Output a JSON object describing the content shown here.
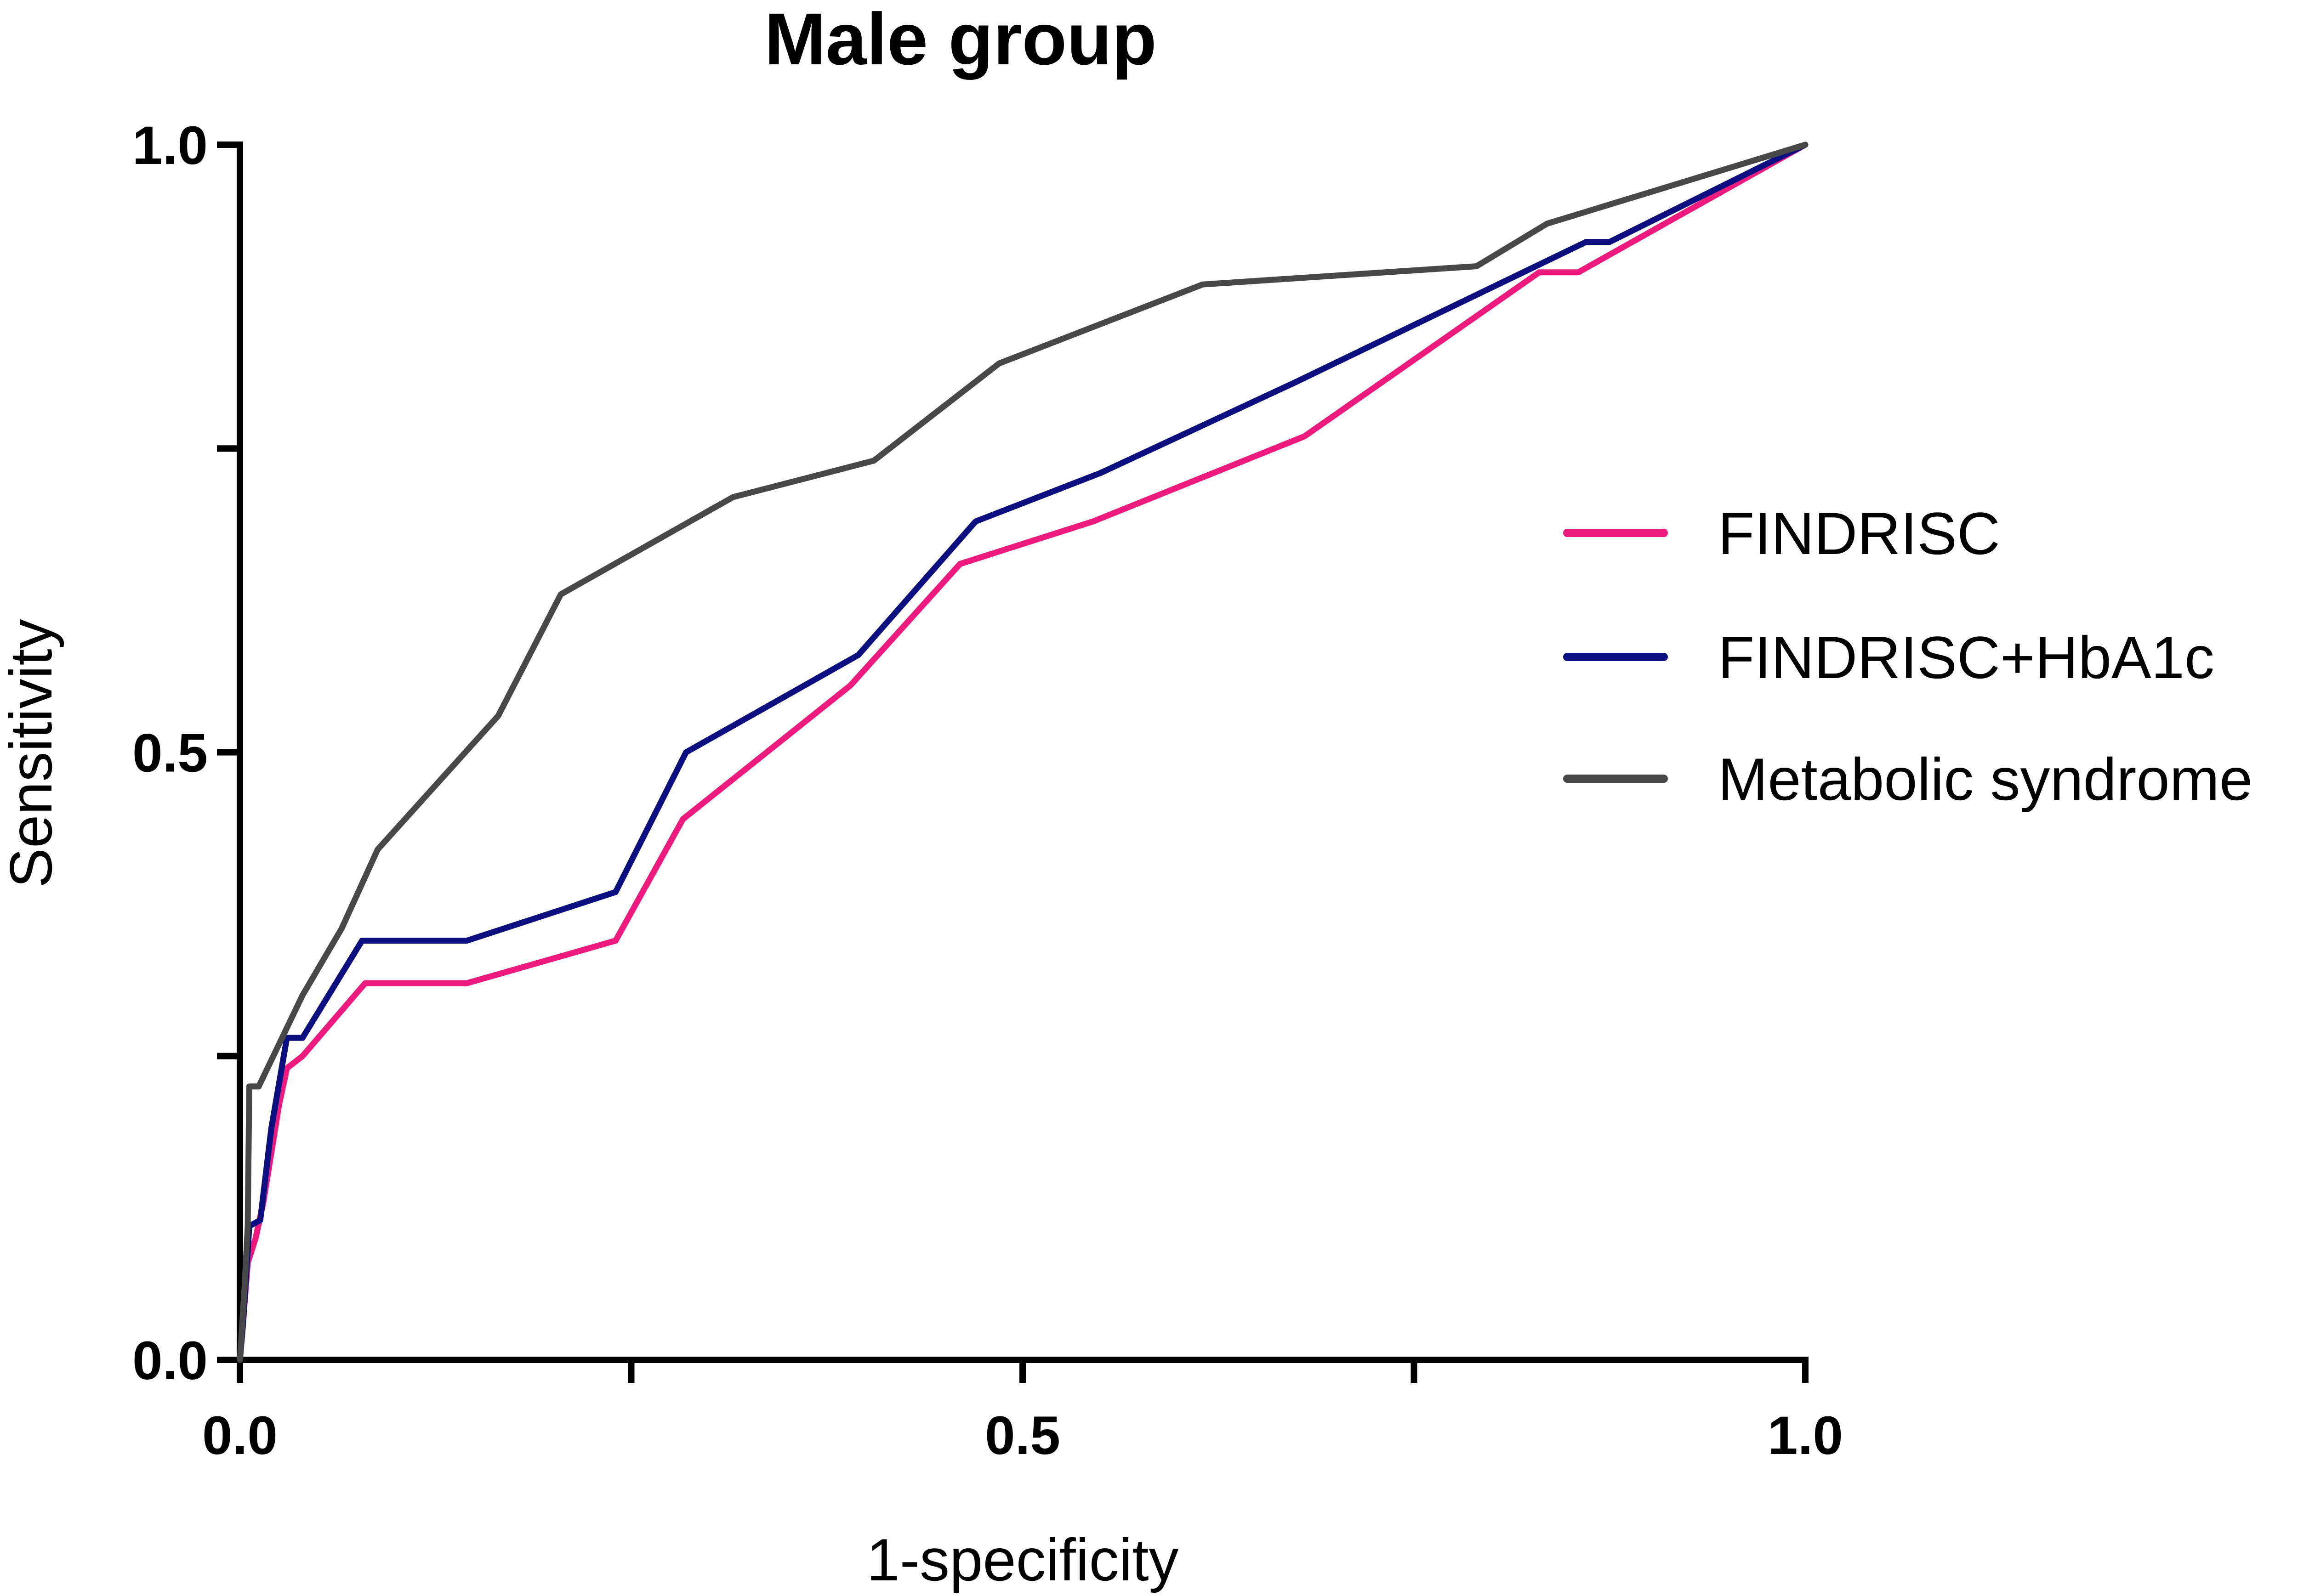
{
  "chart_data": {
    "type": "line",
    "title": "Male group",
    "xlabel": "1-specificity",
    "ylabel": "Sensitivity",
    "xlim": [
      0,
      1
    ],
    "ylim": [
      0,
      1
    ],
    "x_ticks": [
      {
        "value": 0,
        "label": "0.0"
      },
      {
        "value": 0.25,
        "label": ""
      },
      {
        "value": 0.5,
        "label": "0.5"
      },
      {
        "value": 0.75,
        "label": ""
      },
      {
        "value": 1,
        "label": "1.0"
      }
    ],
    "y_ticks": [
      {
        "value": 0,
        "label": "0.0"
      },
      {
        "value": 0.25,
        "label": ""
      },
      {
        "value": 0.5,
        "label": "0.5"
      },
      {
        "value": 0.75,
        "label": ""
      },
      {
        "value": 1,
        "label": "1.0"
      }
    ],
    "grid": false,
    "legend_position": "right",
    "series": [
      {
        "name": "FINDRISC",
        "color": "#ee1a7e",
        "points": [
          [
            0,
            0
          ],
          [
            0.002,
            0.03
          ],
          [
            0.005,
            0.08
          ],
          [
            0.01,
            0.1
          ],
          [
            0.015,
            0.13
          ],
          [
            0.02,
            0.17
          ],
          [
            0.025,
            0.21
          ],
          [
            0.03,
            0.24
          ],
          [
            0.04,
            0.25
          ],
          [
            0.08,
            0.31
          ],
          [
            0.145,
            0.31
          ],
          [
            0.24,
            0.345
          ],
          [
            0.283,
            0.445
          ],
          [
            0.39,
            0.555
          ],
          [
            0.46,
            0.655
          ],
          [
            0.545,
            0.69
          ],
          [
            0.68,
            0.76
          ],
          [
            0.83,
            0.895
          ],
          [
            0.855,
            0.895
          ],
          [
            1,
            1
          ]
        ]
      },
      {
        "name": "FINDRISC+HbA1c",
        "color": "#0b0f7f",
        "points": [
          [
            0,
            0
          ],
          [
            0.002,
            0.03
          ],
          [
            0.004,
            0.07
          ],
          [
            0.006,
            0.11
          ],
          [
            0.013,
            0.115
          ],
          [
            0.02,
            0.19
          ],
          [
            0.03,
            0.265
          ],
          [
            0.04,
            0.265
          ],
          [
            0.078,
            0.345
          ],
          [
            0.145,
            0.345
          ],
          [
            0.24,
            0.385
          ],
          [
            0.285,
            0.5
          ],
          [
            0.395,
            0.58
          ],
          [
            0.47,
            0.69
          ],
          [
            0.55,
            0.73
          ],
          [
            0.675,
            0.805
          ],
          [
            0.86,
            0.92
          ],
          [
            0.875,
            0.92
          ],
          [
            1,
            1
          ]
        ]
      },
      {
        "name": "Metabolic syndrome",
        "color": "#484848",
        "points": [
          [
            0,
            0
          ],
          [
            0.003,
            0.06
          ],
          [
            0.005,
            0.11
          ],
          [
            0.006,
            0.225
          ],
          [
            0.012,
            0.225
          ],
          [
            0.04,
            0.3
          ],
          [
            0.065,
            0.355
          ],
          [
            0.088,
            0.42
          ],
          [
            0.165,
            0.53
          ],
          [
            0.205,
            0.63
          ],
          [
            0.315,
            0.71
          ],
          [
            0.405,
            0.74
          ],
          [
            0.485,
            0.82
          ],
          [
            0.615,
            0.885
          ],
          [
            0.79,
            0.9
          ],
          [
            0.835,
            0.935
          ],
          [
            1,
            1
          ]
        ]
      }
    ]
  }
}
